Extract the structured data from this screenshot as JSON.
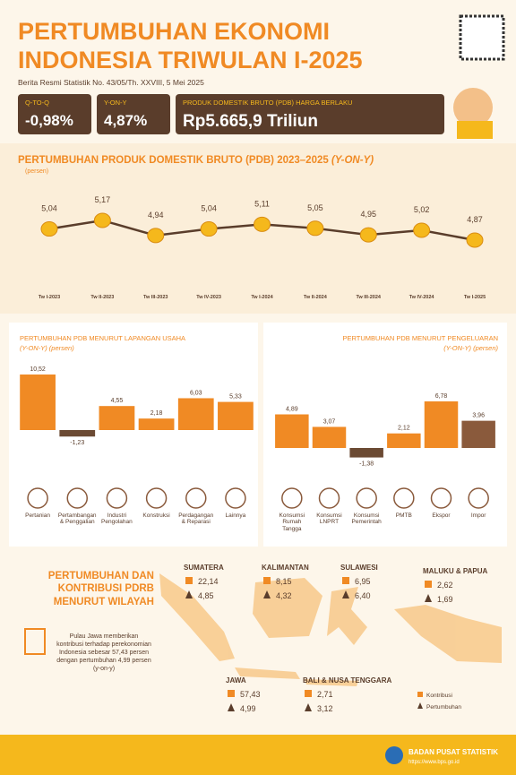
{
  "header": {
    "title_line1": "PERTUMBUHAN EKONOMI",
    "title_line2": "INDONESIA TRIWULAN I-2025",
    "subtitle": "Berita Resmi Statistik No. 43/05/Th. XXVIII, 5 Mei 2025"
  },
  "kpis": [
    {
      "label": "Q-TO-Q",
      "value": "-0,98%"
    },
    {
      "label": "Y-ON-Y",
      "value": "4,87%"
    },
    {
      "label": "PRODUK DOMESTIK BRUTO (PDB) HARGA BERLAKU",
      "value": "Rp5.665,9 Triliun"
    }
  ],
  "chart_data": [
    {
      "type": "line",
      "title": "PERTUMBUHAN PRODUK DOMESTIK BRUTO (PDB) 2023–2025",
      "title_suffix": "(Y-ON-Y)",
      "subtitle": "(persen)",
      "categories": [
        "Tw I-2023",
        "Tw II-2023",
        "Tw III-2023",
        "Tw IV-2023",
        "Tw I-2024",
        "Tw II-2024",
        "Tw III-2024",
        "Tw IV-2024",
        "Tw I-2025"
      ],
      "values": [
        5.04,
        5.17,
        4.94,
        5.04,
        5.11,
        5.05,
        4.95,
        5.02,
        4.87
      ],
      "value_labels": [
        "5,04",
        "5,17",
        "4,94",
        "5,04",
        "5,11",
        "5,05",
        "4,95",
        "5,02",
        "4,87"
      ],
      "color": "#5a3d2b"
    },
    {
      "type": "bar",
      "title": "PERTUMBUHAN PDB MENURUT LAPANGAN USAHA",
      "subtitle": "(Y-ON-Y) (persen)",
      "categories": [
        "Pertanian",
        "Pertambangan & Penggalian",
        "Industri Pengolahan",
        "Konstruksi",
        "Perdagangan & Reparasi",
        "Lainnya"
      ],
      "values": [
        10.52,
        -1.23,
        4.55,
        2.18,
        6.03,
        5.33
      ],
      "value_labels": [
        "10,52",
        "-1,23",
        "4,55",
        "2,18",
        "6,03",
        "5,33"
      ],
      "colors": [
        "#f08a24",
        "#6b4a33",
        "#f08a24",
        "#f08a24",
        "#f08a24",
        "#f08a24"
      ]
    },
    {
      "type": "bar",
      "title": "PERTUMBUHAN PDB MENURUT PENGELUARAN",
      "subtitle": "(Y-ON-Y) (persen)",
      "categories": [
        "Konsumsi Rumah Tangga",
        "Konsumsi LNPRT",
        "Konsumsi Pemerintah",
        "PMTB",
        "Ekspor",
        "Impor"
      ],
      "values": [
        4.89,
        3.07,
        -1.38,
        2.12,
        6.78,
        3.96
      ],
      "value_labels": [
        "4,89",
        "3,07",
        "-1,38",
        "2,12",
        "6,78",
        "3,96"
      ],
      "colors": [
        "#f08a24",
        "#f08a24",
        "#6b4a33",
        "#f08a24",
        "#f08a24",
        "#8a5a3c"
      ]
    }
  ],
  "regions": {
    "title": "PERTUMBUHAN DAN KONTRIBUSI PDRB MENURUT WILAYAH",
    "note": "Pulau Jawa memberikan kontribusi terhadap perekonomian Indonesia sebesar 57,43 persen dengan pertumbuhan 4,99 persen (y-on-y)",
    "items": [
      {
        "name": "SUMATERA",
        "kontribusi": "22,14",
        "pertumbuhan": "4,85"
      },
      {
        "name": "KALIMANTAN",
        "kontribusi": "8,15",
        "pertumbuhan": "4,32"
      },
      {
        "name": "SULAWESI",
        "kontribusi": "6,95",
        "pertumbuhan": "6,40"
      },
      {
        "name": "MALUKU & PAPUA",
        "kontribusi": "2,62",
        "pertumbuhan": "1,69"
      },
      {
        "name": "JAWA",
        "kontribusi": "57,43",
        "pertumbuhan": "4,99"
      },
      {
        "name": "BALI & NUSA TENGGARA",
        "kontribusi": "2,71",
        "pertumbuhan": "3,12"
      }
    ],
    "legend": [
      "Kontribusi",
      "Pertumbuhan"
    ]
  },
  "footer": {
    "org": "BADAN PUSAT STATISTIK",
    "url": "https://www.bps.go.id"
  }
}
